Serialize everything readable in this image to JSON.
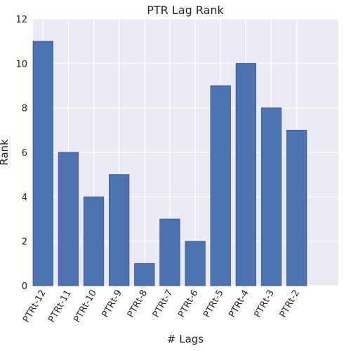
{
  "chart_data": {
    "type": "bar",
    "title": "PTR Lag Rank",
    "xlabel": "# Lags",
    "ylabel": "Rank",
    "categories": [
      "PTRt-12",
      "PTRt-11",
      "PTRt-10",
      "PTRt-9",
      "PTRt-8",
      "PTRt-7",
      "PTRt-6",
      "PTRt-5",
      "PTRt-4",
      "PTRt-3",
      "PTRt-2"
    ],
    "values": [
      11,
      6,
      4,
      5,
      1,
      3,
      2,
      9,
      10,
      8,
      7
    ],
    "ylim": [
      0,
      12
    ],
    "yticks": [
      "0",
      "2",
      "4",
      "6",
      "8",
      "10",
      "12"
    ],
    "grid": true,
    "colors": {
      "bar": "#4c72b0",
      "bar_edge": "#3b5a8c",
      "background": "#eaeaf2",
      "grid": "#ffffff",
      "text": "#262626"
    }
  }
}
